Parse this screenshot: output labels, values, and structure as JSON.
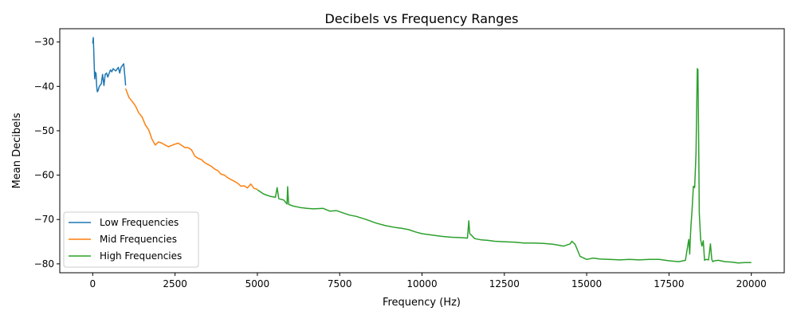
{
  "chart_data": {
    "type": "line",
    "title": "Decibels vs Frequency Ranges",
    "xlabel": "Frequency (Hz)",
    "ylabel": "Mean Decibels",
    "xlim": [
      -1000,
      21000
    ],
    "ylim": [
      -82,
      -27
    ],
    "xticks": [
      0,
      2500,
      5000,
      7500,
      10000,
      12500,
      15000,
      17500,
      20000
    ],
    "xtick_labels": [
      "0",
      "2500",
      "5000",
      "7500",
      "10000",
      "12500",
      "15000",
      "17500",
      "20000"
    ],
    "yticks": [
      -30,
      -40,
      -50,
      -60,
      -70,
      -80
    ],
    "ytick_labels": [
      "−30",
      "−40",
      "−50",
      "−60",
      "−70",
      "−80"
    ],
    "grid": false,
    "legend_position": "lower-left",
    "series": [
      {
        "name": "Low Frequencies",
        "color": "#1f77b4",
        "x": [
          0,
          20,
          40,
          60,
          80,
          100,
          120,
          140,
          160,
          180,
          200,
          230,
          260,
          300,
          340,
          380,
          420,
          460,
          500,
          540,
          580,
          620,
          660,
          700,
          740,
          780,
          820,
          860,
          900,
          940,
          980,
          1000
        ],
        "y": [
          -30.3,
          -29.0,
          -34.0,
          -38.3,
          -36.8,
          -37.1,
          -40.0,
          -41.2,
          -41.0,
          -40.5,
          -40.0,
          -39.7,
          -39.4,
          -37.3,
          -39.8,
          -37.3,
          -37.0,
          -37.9,
          -37.0,
          -36.3,
          -36.7,
          -36.0,
          -36.3,
          -36.5,
          -36.1,
          -35.7,
          -37.0,
          -35.7,
          -35.3,
          -34.9,
          -38.0,
          -39.8
        ]
      },
      {
        "name": "Mid Frequencies",
        "color": "#ff7f0e",
        "x": [
          1000,
          1100,
          1200,
          1300,
          1400,
          1500,
          1600,
          1700,
          1800,
          1900,
          2000,
          2100,
          2200,
          2300,
          2400,
          2500,
          2600,
          2700,
          2800,
          2900,
          3000,
          3100,
          3200,
          3300,
          3400,
          3500,
          3600,
          3700,
          3800,
          3900,
          4000,
          4100,
          4200,
          4300,
          4400,
          4500,
          4600,
          4700,
          4800,
          4900,
          5000
        ],
        "y": [
          -40.5,
          -42.5,
          -43.4,
          -44.4,
          -46.0,
          -46.9,
          -48.7,
          -49.8,
          -51.9,
          -53.2,
          -52.5,
          -52.8,
          -53.2,
          -53.6,
          -53.3,
          -53.0,
          -52.8,
          -53.3,
          -53.8,
          -53.8,
          -54.3,
          -55.7,
          -56.2,
          -56.5,
          -57.2,
          -57.6,
          -58.0,
          -58.6,
          -59.0,
          -59.8,
          -60.0,
          -60.6,
          -61.0,
          -61.4,
          -61.8,
          -62.5,
          -62.4,
          -62.9,
          -62.0,
          -63.0,
          -63.2
        ]
      },
      {
        "name": "High Frequencies",
        "color": "#2ca02c",
        "x": [
          5000,
          5200,
          5400,
          5550,
          5600,
          5650,
          5800,
          5900,
          5920,
          5950,
          6100,
          6300,
          6500,
          6700,
          7000,
          7200,
          7400,
          7600,
          7800,
          8000,
          8300,
          8600,
          8900,
          9200,
          9400,
          9600,
          9800,
          10000,
          10300,
          10600,
          10900,
          11200,
          11380,
          11420,
          11450,
          11520,
          11600,
          11800,
          12000,
          12200,
          12500,
          12800,
          13100,
          13400,
          13700,
          14000,
          14300,
          14500,
          14550,
          14650,
          14800,
          15000,
          15200,
          15400,
          15700,
          16000,
          16300,
          16600,
          16900,
          17200,
          17500,
          17800,
          18000,
          18100,
          18130,
          18150,
          18170,
          18200,
          18240,
          18280,
          18320,
          18360,
          18380,
          18400,
          18420,
          18460,
          18500,
          18540,
          18580,
          18620,
          18700,
          18760,
          18800,
          18830,
          18880,
          19000,
          19200,
          19400,
          19600,
          19800,
          20000
        ],
        "y": [
          -63.3,
          -64.3,
          -64.8,
          -65.0,
          -62.8,
          -65.3,
          -65.6,
          -66.5,
          -62.6,
          -66.6,
          -67.0,
          -67.3,
          -67.5,
          -67.6,
          -67.5,
          -68.1,
          -68.0,
          -68.5,
          -69.0,
          -69.3,
          -70.0,
          -70.8,
          -71.4,
          -71.8,
          -72.0,
          -72.3,
          -72.8,
          -73.2,
          -73.5,
          -73.8,
          -74.0,
          -74.1,
          -74.2,
          -70.3,
          -73.2,
          -73.7,
          -74.3,
          -74.6,
          -74.7,
          -74.9,
          -75.0,
          -75.1,
          -75.3,
          -75.3,
          -75.4,
          -75.6,
          -76.0,
          -75.5,
          -74.9,
          -75.6,
          -78.3,
          -79.0,
          -78.7,
          -78.9,
          -79.0,
          -79.1,
          -79.0,
          -79.1,
          -79.0,
          -79.0,
          -79.3,
          -79.5,
          -79.2,
          -74.5,
          -77.8,
          -74.0,
          -71.0,
          -68.0,
          -62.5,
          -62.8,
          -55.0,
          -36.0,
          -36.2,
          -52.0,
          -68.5,
          -74.5,
          -76.0,
          -74.8,
          -79.2,
          -79.0,
          -79.1,
          -75.5,
          -79.0,
          -79.5,
          -79.3,
          -79.2,
          -79.5,
          -79.6,
          -79.8,
          -79.7,
          -79.7
        ]
      }
    ]
  }
}
